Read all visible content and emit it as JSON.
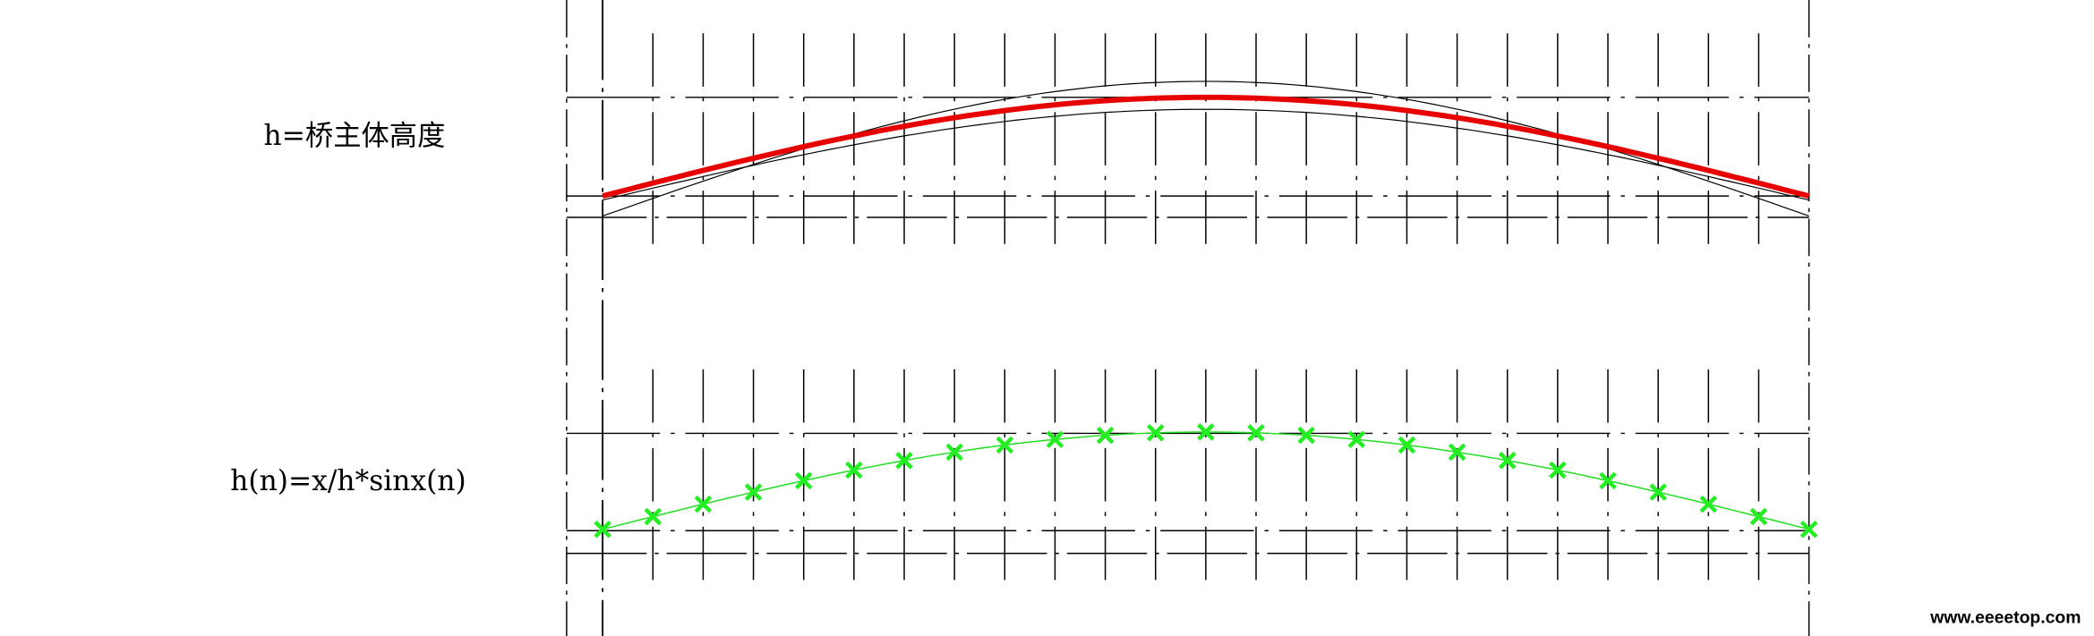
{
  "labels": [
    "h=桥主体高度",
    "h(n)=x/h*sinx(n)"
  ],
  "watermark": "www.eeeetop.com"
}
